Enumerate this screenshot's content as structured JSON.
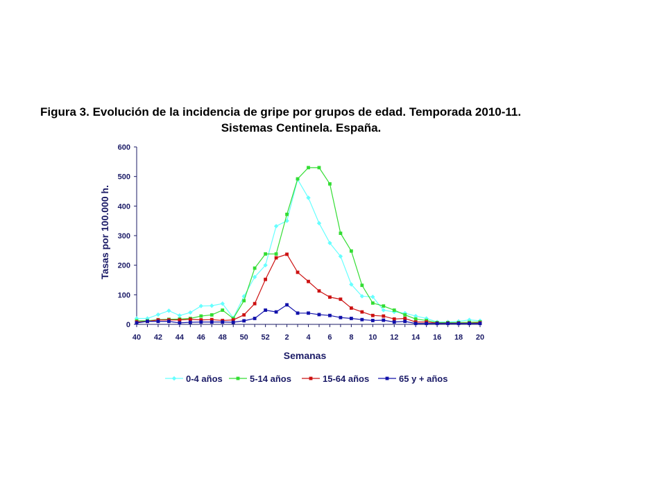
{
  "chart_data": {
    "type": "line",
    "title_line1": "Figura 3. Evolución de la incidencia de gripe por grupos de edad. Temporada 2010-11.",
    "title_line2": "Sistemas Centinela. España.",
    "xlabel": "Semanas",
    "ylabel": "Tasas por 100.000 h.",
    "ylim": [
      0,
      600
    ],
    "yticks": [
      "0",
      "100",
      "200",
      "300",
      "400",
      "500",
      "600"
    ],
    "x": [
      "40",
      "41",
      "42",
      "43",
      "44",
      "45",
      "46",
      "47",
      "48",
      "49",
      "50",
      "51",
      "52",
      "1",
      "2",
      "3",
      "4",
      "5",
      "6",
      "7",
      "8",
      "9",
      "10",
      "11",
      "12",
      "13",
      "14",
      "15",
      "16",
      "17",
      "18",
      "19",
      "20"
    ],
    "xtick_labels": [
      "40",
      "42",
      "44",
      "46",
      "48",
      "50",
      "52",
      "2",
      "4",
      "6",
      "8",
      "10",
      "12",
      "14",
      "16",
      "18",
      "20"
    ],
    "grid": false,
    "legend_position": "bottom",
    "series": [
      {
        "name": "0-4 años",
        "color": "#66ffff",
        "marker": "diamond",
        "values": [
          20,
          20,
          33,
          46,
          30,
          40,
          62,
          63,
          70,
          22,
          95,
          160,
          200,
          332,
          350,
          490,
          428,
          342,
          275,
          230,
          135,
          95,
          93,
          48,
          42,
          38,
          28,
          20,
          8,
          8,
          10,
          15,
          12
        ]
      },
      {
        "name": "5-14 años",
        "color": "#33dd33",
        "marker": "square",
        "values": [
          12,
          12,
          16,
          17,
          18,
          20,
          28,
          32,
          48,
          20,
          80,
          190,
          238,
          238,
          372,
          492,
          530,
          530,
          475,
          308,
          248,
          132,
          72,
          62,
          48,
          32,
          18,
          13,
          6,
          6,
          6,
          7,
          8
        ]
      },
      {
        "name": "15-64 años",
        "color": "#cc1111",
        "marker": "square",
        "values": [
          8,
          10,
          15,
          15,
          15,
          17,
          15,
          16,
          13,
          15,
          32,
          70,
          152,
          225,
          237,
          176,
          145,
          113,
          92,
          85,
          55,
          42,
          30,
          28,
          18,
          20,
          8,
          8,
          4,
          4,
          4,
          4,
          5
        ]
      },
      {
        "name": "65 y + años",
        "color": "#1111aa",
        "marker": "square",
        "values": [
          5,
          10,
          10,
          10,
          5,
          7,
          8,
          8,
          8,
          7,
          12,
          20,
          48,
          42,
          66,
          38,
          38,
          33,
          30,
          23,
          20,
          16,
          13,
          14,
          8,
          10,
          3,
          3,
          3,
          3,
          3,
          3,
          3
        ]
      }
    ]
  }
}
